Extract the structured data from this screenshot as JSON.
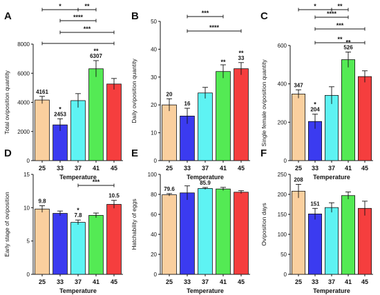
{
  "chart_data": [
    {
      "type": "bar",
      "panel": "A",
      "categories": [
        "25",
        "33",
        "37",
        "41",
        "45"
      ],
      "values": [
        4161,
        2453,
        4120,
        6307,
        5260
      ],
      "errors": [
        250,
        420,
        480,
        560,
        380
      ],
      "colors": [
        "#FACF9E",
        "#3B3BF0",
        "#5EF3F3",
        "#54EA54",
        "#F53E3E"
      ],
      "ylabel": "Total oviposition quantity",
      "xlabel": "Temperature",
      "ylim": [
        0,
        8000
      ],
      "yticks": [
        0,
        2000,
        4000,
        6000,
        8000
      ],
      "value_labels": [
        "4161",
        "2453",
        "",
        "6307",
        ""
      ],
      "bar_annotations": [
        "",
        "*",
        "",
        "**",
        ""
      ],
      "brackets": [
        {
          "from": "25",
          "to": "37",
          "label": "*"
        },
        {
          "from": "37",
          "to": "41",
          "label": "**"
        },
        {
          "from": "33",
          "to": "41",
          "label": "****"
        },
        {
          "from": "33",
          "to": "45",
          "label": "***"
        },
        {
          "from": "25",
          "to": "45",
          "label": ""
        }
      ]
    },
    {
      "type": "bar",
      "panel": "B",
      "categories": [
        "25",
        "33",
        "37",
        "41",
        "45"
      ],
      "values": [
        20,
        16,
        24.3,
        32,
        33
      ],
      "errors": [
        2.2,
        2.8,
        2.0,
        2.4,
        2.2
      ],
      "colors": [
        "#FACF9E",
        "#3B3BF0",
        "#5EF3F3",
        "#54EA54",
        "#F53E3E"
      ],
      "ylabel": "Daily oviposition quantity",
      "xlabel": "Temperature",
      "ylim": [
        0,
        50
      ],
      "yticks": [
        0,
        10,
        20,
        30,
        40,
        50
      ],
      "value_labels": [
        "20",
        "16",
        "",
        "",
        "33"
      ],
      "bar_annotations": [
        "",
        "",
        "",
        "**",
        "**"
      ],
      "brackets": [
        {
          "from": "33",
          "to": "41",
          "label": "***"
        },
        {
          "from": "33",
          "to": "45",
          "label": "****"
        }
      ]
    },
    {
      "type": "bar",
      "panel": "C",
      "categories": [
        "25",
        "33",
        "37",
        "41",
        "45"
      ],
      "values": [
        347,
        204,
        340,
        526,
        438
      ],
      "errors": [
        22,
        38,
        45,
        40,
        30
      ],
      "colors": [
        "#FACF9E",
        "#3B3BF0",
        "#5EF3F3",
        "#54EA54",
        "#F53E3E"
      ],
      "ylabel": "Single female oviposition quantity",
      "xlabel": "Temperature",
      "ylim": [
        0,
        600
      ],
      "yticks": [
        0,
        200,
        400,
        600
      ],
      "value_labels": [
        "347",
        "204",
        "",
        "526",
        ""
      ],
      "bar_annotations": [
        "",
        "*",
        "",
        "**",
        ""
      ],
      "brackets": [
        {
          "from": "25",
          "to": "37",
          "label": "*"
        },
        {
          "from": "37",
          "to": "41",
          "label": "**"
        },
        {
          "from": "33",
          "to": "41",
          "label": "****"
        },
        {
          "from": "33",
          "to": "45",
          "label": "***"
        },
        {
          "from": "33",
          "to": "45",
          "label": "**"
        }
      ]
    },
    {
      "type": "bar",
      "panel": "D",
      "categories": [
        "25",
        "33",
        "37",
        "41",
        "45"
      ],
      "values": [
        9.8,
        9.15,
        7.8,
        8.85,
        10.5
      ],
      "errors": [
        0.5,
        0.35,
        0.35,
        0.35,
        0.6
      ],
      "colors": [
        "#FACF9E",
        "#3B3BF0",
        "#5EF3F3",
        "#54EA54",
        "#F53E3E"
      ],
      "ylabel": "Early stage of oviposition",
      "xlabel": "Temperature",
      "ylim": [
        0,
        15
      ],
      "yticks": [
        0,
        5,
        10,
        15
      ],
      "value_labels": [
        "9.8",
        "",
        "7.8",
        "",
        "10.5"
      ],
      "bar_annotations": [
        "",
        "",
        "*",
        "",
        ""
      ],
      "brackets": [
        {
          "from": "37",
          "to": "45",
          "label": "***"
        }
      ]
    },
    {
      "type": "bar",
      "panel": "E",
      "categories": [
        "25",
        "33",
        "37",
        "41",
        "45"
      ],
      "values": [
        79.6,
        81.5,
        85.9,
        85.4,
        82.2
      ],
      "errors": [
        1.2,
        7.0,
        1.0,
        1.6,
        1.5
      ],
      "colors": [
        "#FACF9E",
        "#3B3BF0",
        "#5EF3F3",
        "#54EA54",
        "#F53E3E"
      ],
      "ylabel": "Hatchability of eggs",
      "xlabel": "Temperature",
      "ylim": [
        0,
        100
      ],
      "yticks": [
        0,
        20,
        40,
        60,
        80,
        100
      ],
      "value_labels": [
        "79.6",
        "",
        "85.9",
        "",
        ""
      ],
      "bar_annotations": [
        "",
        "",
        "",
        "",
        ""
      ],
      "brackets": []
    },
    {
      "type": "bar",
      "panel": "F",
      "categories": [
        "25",
        "33",
        "37",
        "41",
        "45"
      ],
      "values": [
        208,
        151,
        167,
        197,
        165
      ],
      "errors": [
        17,
        14,
        12,
        9,
        18
      ],
      "colors": [
        "#FACF9E",
        "#3B3BF0",
        "#5EF3F3",
        "#54EA54",
        "#F53E3E"
      ],
      "ylabel": "Oviposition days",
      "xlabel": "Temperature",
      "ylim": [
        0,
        250
      ],
      "yticks": [
        0,
        50,
        100,
        150,
        200,
        250
      ],
      "value_labels": [
        "208",
        "151",
        "",
        "",
        ""
      ],
      "bar_annotations": [
        "",
        "",
        "",
        "",
        ""
      ],
      "brackets": []
    }
  ]
}
